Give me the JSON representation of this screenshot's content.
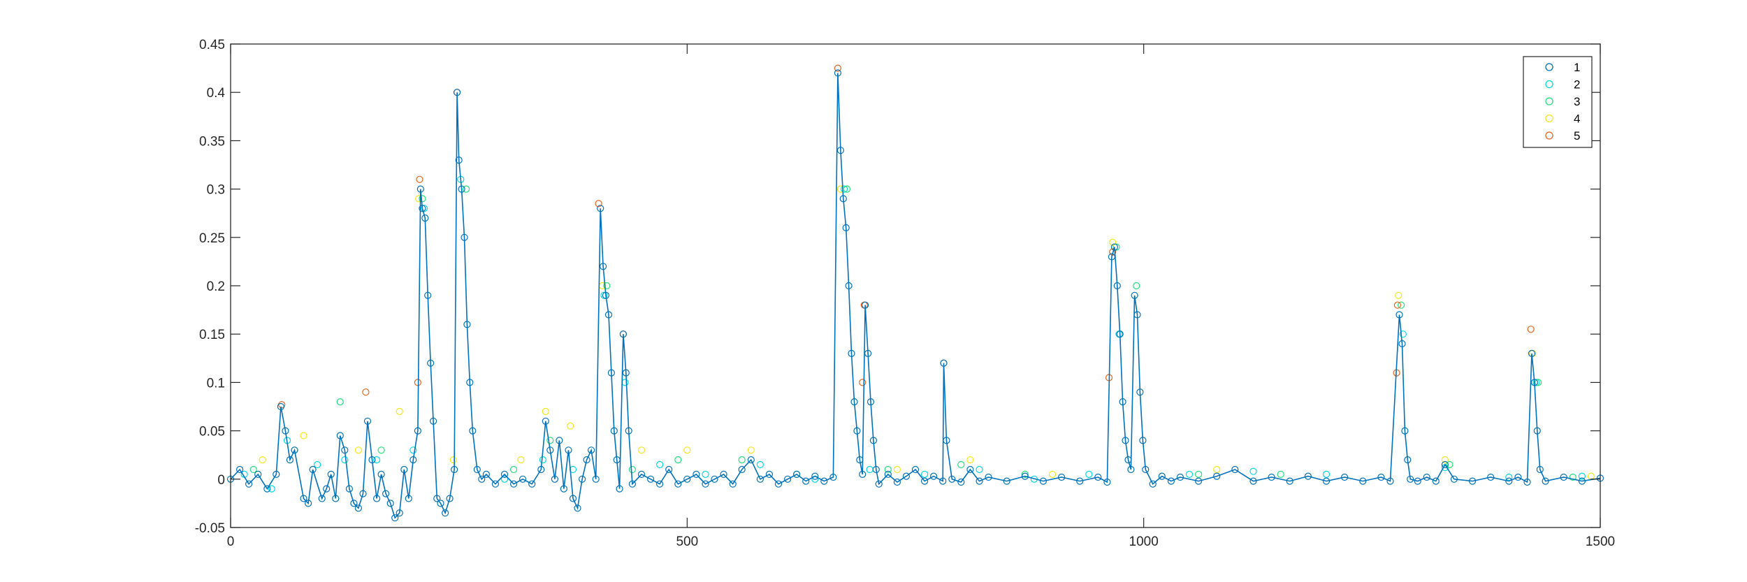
{
  "chart_data": {
    "type": "scatter",
    "connected_series": "1",
    "title": "",
    "xlabel": "",
    "ylabel": "",
    "xlim": [
      0,
      1500
    ],
    "ylim": [
      -0.05,
      0.45
    ],
    "x_ticks": [
      0,
      500,
      1000,
      1500
    ],
    "y_ticks": [
      -0.05,
      0,
      0.05,
      0.1,
      0.15,
      0.2,
      0.25,
      0.3,
      0.35,
      0.4,
      0.45
    ],
    "x_tick_labels": [
      "0",
      "500",
      "1000",
      "1500"
    ],
    "y_tick_labels": [
      "-0.05",
      "0",
      "0.05",
      "0.1",
      "0.15",
      "0.2",
      "0.25",
      "0.3",
      "0.35",
      "0.4",
      "0.45"
    ],
    "grid": false,
    "box": true,
    "marker": "circle-open",
    "legend_position": "top-right",
    "series": [
      {
        "name": "1",
        "color": "#0072BD",
        "points": [
          [
            0,
            0
          ],
          [
            10,
            0.01
          ],
          [
            20,
            -0.005
          ],
          [
            30,
            0.005
          ],
          [
            40,
            -0.01
          ],
          [
            50,
            0.005
          ],
          [
            55,
            0.075
          ],
          [
            60,
            0.05
          ],
          [
            65,
            0.02
          ],
          [
            70,
            0.03
          ],
          [
            80,
            -0.02
          ],
          [
            85,
            -0.025
          ],
          [
            90,
            0.01
          ],
          [
            100,
            -0.02
          ],
          [
            105,
            -0.01
          ],
          [
            110,
            0.005
          ],
          [
            115,
            -0.02
          ],
          [
            120,
            0.045
          ],
          [
            125,
            0.03
          ],
          [
            130,
            -0.01
          ],
          [
            135,
            -0.025
          ],
          [
            140,
            -0.03
          ],
          [
            145,
            -0.015
          ],
          [
            150,
            0.06
          ],
          [
            155,
            0.02
          ],
          [
            160,
            -0.02
          ],
          [
            165,
            0.005
          ],
          [
            170,
            -0.015
          ],
          [
            175,
            -0.025
          ],
          [
            180,
            -0.04
          ],
          [
            185,
            -0.035
          ],
          [
            190,
            0.01
          ],
          [
            195,
            -0.02
          ],
          [
            200,
            0.02
          ],
          [
            205,
            0.05
          ],
          [
            208,
            0.3
          ],
          [
            210,
            0.28
          ],
          [
            213,
            0.27
          ],
          [
            216,
            0.19
          ],
          [
            219,
            0.12
          ],
          [
            222,
            0.06
          ],
          [
            226,
            -0.02
          ],
          [
            230,
            -0.025
          ],
          [
            235,
            -0.035
          ],
          [
            240,
            -0.02
          ],
          [
            245,
            0.01
          ],
          [
            248,
            0.4
          ],
          [
            250,
            0.33
          ],
          [
            253,
            0.3
          ],
          [
            256,
            0.25
          ],
          [
            259,
            0.16
          ],
          [
            262,
            0.1
          ],
          [
            265,
            0.05
          ],
          [
            270,
            0.01
          ],
          [
            275,
            0
          ],
          [
            280,
            0.005
          ],
          [
            290,
            -0.005
          ],
          [
            300,
            0.005
          ],
          [
            310,
            -0.005
          ],
          [
            320,
            0
          ],
          [
            330,
            -0.005
          ],
          [
            340,
            0.01
          ],
          [
            345,
            0.06
          ],
          [
            350,
            0.03
          ],
          [
            355,
            0
          ],
          [
            360,
            0.04
          ],
          [
            365,
            -0.01
          ],
          [
            370,
            0.03
          ],
          [
            375,
            -0.02
          ],
          [
            380,
            -0.03
          ],
          [
            385,
            0
          ],
          [
            390,
            0.02
          ],
          [
            395,
            0.03
          ],
          [
            400,
            0
          ],
          [
            405,
            0.28
          ],
          [
            408,
            0.22
          ],
          [
            411,
            0.19
          ],
          [
            414,
            0.17
          ],
          [
            417,
            0.11
          ],
          [
            420,
            0.05
          ],
          [
            423,
            0.02
          ],
          [
            426,
            -0.01
          ],
          [
            430,
            0.15
          ],
          [
            433,
            0.11
          ],
          [
            436,
            0.05
          ],
          [
            440,
            -0.005
          ],
          [
            450,
            0.005
          ],
          [
            460,
            0
          ],
          [
            470,
            -0.005
          ],
          [
            480,
            0.01
          ],
          [
            490,
            -0.005
          ],
          [
            500,
            0
          ],
          [
            510,
            0.005
          ],
          [
            520,
            -0.005
          ],
          [
            530,
            0
          ],
          [
            540,
            0.005
          ],
          [
            550,
            -0.005
          ],
          [
            560,
            0.01
          ],
          [
            570,
            0.02
          ],
          [
            580,
            0
          ],
          [
            590,
            0.005
          ],
          [
            600,
            -0.005
          ],
          [
            610,
            0
          ],
          [
            620,
            0.005
          ],
          [
            630,
            -0.002
          ],
          [
            640,
            0.003
          ],
          [
            650,
            -0.002
          ],
          [
            660,
            0.002
          ],
          [
            665,
            0.42
          ],
          [
            668,
            0.34
          ],
          [
            671,
            0.29
          ],
          [
            674,
            0.26
          ],
          [
            677,
            0.2
          ],
          [
            680,
            0.13
          ],
          [
            683,
            0.08
          ],
          [
            686,
            0.05
          ],
          [
            689,
            0.02
          ],
          [
            692,
            0.005
          ],
          [
            695,
            0.18
          ],
          [
            698,
            0.13
          ],
          [
            701,
            0.08
          ],
          [
            704,
            0.04
          ],
          [
            707,
            0.01
          ],
          [
            710,
            -0.005
          ],
          [
            720,
            0.005
          ],
          [
            730,
            -0.003
          ],
          [
            740,
            0.003
          ],
          [
            750,
            0.01
          ],
          [
            760,
            -0.002
          ],
          [
            770,
            0.003
          ],
          [
            780,
            -0.002
          ],
          [
            781,
            0.12
          ],
          [
            784,
            0.04
          ],
          [
            790,
            0
          ],
          [
            800,
            -0.003
          ],
          [
            810,
            0.01
          ],
          [
            820,
            -0.002
          ],
          [
            830,
            0.002
          ],
          [
            850,
            -0.002
          ],
          [
            870,
            0.003
          ],
          [
            890,
            -0.002
          ],
          [
            910,
            0.002
          ],
          [
            930,
            -0.002
          ],
          [
            950,
            0.002
          ],
          [
            960,
            -0.003
          ],
          [
            965,
            0.23
          ],
          [
            968,
            0.24
          ],
          [
            971,
            0.2
          ],
          [
            974,
            0.15
          ],
          [
            977,
            0.08
          ],
          [
            980,
            0.04
          ],
          [
            983,
            0.02
          ],
          [
            986,
            0.01
          ],
          [
            990,
            0.19
          ],
          [
            993,
            0.17
          ],
          [
            996,
            0.09
          ],
          [
            999,
            0.04
          ],
          [
            1002,
            0.01
          ],
          [
            1010,
            -0.005
          ],
          [
            1020,
            0.003
          ],
          [
            1030,
            -0.002
          ],
          [
            1040,
            0.002
          ],
          [
            1060,
            -0.002
          ],
          [
            1080,
            0.003
          ],
          [
            1100,
            0.01
          ],
          [
            1120,
            -0.002
          ],
          [
            1140,
            0.002
          ],
          [
            1160,
            -0.002
          ],
          [
            1180,
            0.003
          ],
          [
            1200,
            -0.002
          ],
          [
            1220,
            0.002
          ],
          [
            1240,
            -0.002
          ],
          [
            1260,
            0.002
          ],
          [
            1270,
            -0.002
          ],
          [
            1280,
            0.17
          ],
          [
            1283,
            0.14
          ],
          [
            1286,
            0.05
          ],
          [
            1289,
            0.02
          ],
          [
            1292,
            0
          ],
          [
            1300,
            -0.002
          ],
          [
            1310,
            0.002
          ],
          [
            1320,
            -0.002
          ],
          [
            1330,
            0.015
          ],
          [
            1340,
            0
          ],
          [
            1360,
            -0.002
          ],
          [
            1380,
            0.002
          ],
          [
            1400,
            -0.002
          ],
          [
            1410,
            0.002
          ],
          [
            1420,
            -0.003
          ],
          [
            1425,
            0.13
          ],
          [
            1428,
            0.1
          ],
          [
            1431,
            0.05
          ],
          [
            1434,
            0.01
          ],
          [
            1440,
            -0.002
          ],
          [
            1460,
            0.002
          ],
          [
            1480,
            -0.002
          ],
          [
            1500,
            0.001
          ]
        ]
      },
      {
        "name": "2",
        "color": "#00D9E6",
        "points": [
          [
            15,
            0.005
          ],
          [
            45,
            -0.01
          ],
          [
            62,
            0.04
          ],
          [
            95,
            0.015
          ],
          [
            125,
            0.02
          ],
          [
            160,
            0.02
          ],
          [
            200,
            0.03
          ],
          [
            212,
            0.28
          ],
          [
            252,
            0.31
          ],
          [
            300,
            0
          ],
          [
            342,
            0.02
          ],
          [
            375,
            0.01
          ],
          [
            409,
            0.19
          ],
          [
            432,
            0.1
          ],
          [
            470,
            0.015
          ],
          [
            520,
            0.005
          ],
          [
            580,
            0.015
          ],
          [
            640,
            0
          ],
          [
            672,
            0.3
          ],
          [
            700,
            0.01
          ],
          [
            760,
            0.005
          ],
          [
            820,
            0.01
          ],
          [
            880,
            0
          ],
          [
            940,
            0.005
          ],
          [
            973,
            0.15
          ],
          [
            1050,
            0.005
          ],
          [
            1120,
            0.008
          ],
          [
            1200,
            0.005
          ],
          [
            1284,
            0.15
          ],
          [
            1330,
            0.012
          ],
          [
            1400,
            0.002
          ],
          [
            1430,
            0.1
          ],
          [
            1480,
            0.003
          ]
        ]
      },
      {
        "name": "3",
        "color": "#22E07A",
        "points": [
          [
            25,
            0.01
          ],
          [
            70,
            0.03
          ],
          [
            120,
            0.08
          ],
          [
            165,
            0.03
          ],
          [
            210,
            0.29
          ],
          [
            258,
            0.3
          ],
          [
            310,
            0.01
          ],
          [
            350,
            0.04
          ],
          [
            412,
            0.2
          ],
          [
            440,
            0.01
          ],
          [
            490,
            0.02
          ],
          [
            560,
            0.02
          ],
          [
            620,
            0.005
          ],
          [
            675,
            0.3
          ],
          [
            720,
            0.01
          ],
          [
            800,
            0.015
          ],
          [
            870,
            0.005
          ],
          [
            970,
            0.24
          ],
          [
            992,
            0.2
          ],
          [
            1060,
            0.005
          ],
          [
            1150,
            0.005
          ],
          [
            1282,
            0.18
          ],
          [
            1335,
            0.015
          ],
          [
            1432,
            0.1
          ],
          [
            1470,
            0.002
          ]
        ]
      },
      {
        "name": "4",
        "color": "#F5E61A",
        "points": [
          [
            35,
            0.02
          ],
          [
            80,
            0.045
          ],
          [
            140,
            0.03
          ],
          [
            185,
            0.07
          ],
          [
            206,
            0.29
          ],
          [
            244,
            0.02
          ],
          [
            318,
            0.02
          ],
          [
            345,
            0.07
          ],
          [
            372,
            0.055
          ],
          [
            407,
            0.2
          ],
          [
            450,
            0.03
          ],
          [
            500,
            0.03
          ],
          [
            570,
            0.03
          ],
          [
            668,
            0.3
          ],
          [
            730,
            0.01
          ],
          [
            810,
            0.02
          ],
          [
            900,
            0.005
          ],
          [
            966,
            0.245
          ],
          [
            1080,
            0.01
          ],
          [
            1279,
            0.19
          ],
          [
            1330,
            0.02
          ],
          [
            1426,
            0.13
          ],
          [
            1490,
            0.003
          ]
        ]
      },
      {
        "name": "5",
        "color": "#E8641C",
        "points": [
          [
            56,
            0.077
          ],
          [
            148,
            0.09
          ],
          [
            207,
            0.31
          ],
          [
            205,
            0.1
          ],
          [
            248,
            0.4
          ],
          [
            403,
            0.285
          ],
          [
            430,
            0.15
          ],
          [
            665,
            0.425
          ],
          [
            694,
            0.18
          ],
          [
            692,
            0.1
          ],
          [
            781,
            0.12
          ],
          [
            962,
            0.105
          ],
          [
            966,
            0.235
          ],
          [
            1278,
            0.18
          ],
          [
            1277,
            0.11
          ],
          [
            1424,
            0.155
          ]
        ]
      }
    ]
  },
  "legend": {
    "entries": [
      {
        "label": "1",
        "color": "#0072BD"
      },
      {
        "label": "2",
        "color": "#00D9E6"
      },
      {
        "label": "3",
        "color": "#22E07A"
      },
      {
        "label": "4",
        "color": "#F5E61A"
      },
      {
        "label": "5",
        "color": "#E8641C"
      }
    ]
  }
}
